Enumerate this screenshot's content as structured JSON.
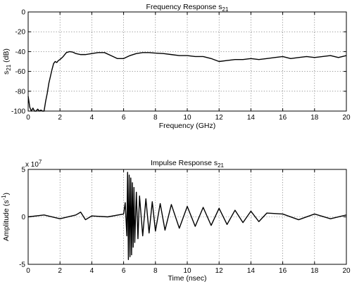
{
  "chart_data": [
    {
      "type": "line",
      "title": "Frequency Response s",
      "title_sub": "21",
      "xlabel": "Frequency (GHz)",
      "ylabel": "s",
      "ylabel_sub": "21",
      "ylabel_suffix": " (dB)",
      "xlim": [
        0,
        20
      ],
      "ylim": [
        -100,
        0
      ],
      "xticks": [
        0,
        2,
        4,
        6,
        8,
        10,
        12,
        14,
        16,
        18,
        20
      ],
      "yticks": [
        -100,
        -80,
        -60,
        -40,
        -20,
        0
      ],
      "grid": true,
      "series": [
        {
          "x": [
            0,
            0.1,
            0.2,
            0.3,
            0.4,
            0.5,
            0.6,
            0.7,
            0.8,
            0.9,
            1.0,
            1.1,
            1.2,
            1.3,
            1.4,
            1.5,
            1.6,
            1.7,
            1.8,
            1.9,
            2.0,
            2.2,
            2.4,
            2.6,
            2.8,
            3.0,
            3.3,
            3.6,
            4.0,
            4.4,
            4.8,
            5.2,
            5.6,
            6.0,
            6.4,
            6.8,
            7.2,
            7.6,
            8.0,
            8.5,
            9.0,
            9.5,
            10.0,
            10.5,
            11.0,
            11.5,
            12.0,
            12.5,
            13.0,
            13.5,
            14.0,
            14.5,
            15.0,
            15.5,
            16.0,
            16.5,
            17.0,
            17.5,
            18.0,
            18.5,
            19.0,
            19.5,
            20.0
          ],
          "y": [
            -85,
            -96,
            -100,
            -97,
            -100,
            -100,
            -98,
            -100,
            -99,
            -100,
            -100,
            -90,
            -82,
            -72,
            -65,
            -58,
            -52,
            -50,
            -51,
            -49,
            -48,
            -45,
            -41,
            -40,
            -40.5,
            -42,
            -43,
            -43,
            -42,
            -41,
            -41,
            -44,
            -47,
            -47,
            -44,
            -42,
            -41,
            -41,
            -41.5,
            -42,
            -43,
            -44,
            -44,
            -45,
            -45,
            -47,
            -50,
            -49,
            -48,
            -48,
            -47,
            -48,
            -47,
            -46,
            -45,
            -47,
            -46,
            -45,
            -46,
            -45,
            -44,
            -46,
            -44
          ]
        }
      ]
    },
    {
      "type": "line",
      "title": "Impulse Response s",
      "title_sub": "21",
      "xlabel": "Time (nsec)",
      "ylabel": "Amplitude (s",
      "ylabel_sup": "-1",
      "ylabel_suffix": ")",
      "y_multiplier": "x 10",
      "y_multiplier_exp": "7",
      "xlim": [
        0,
        20
      ],
      "ylim": [
        -5,
        5
      ],
      "xticks": [
        0,
        2,
        4,
        6,
        8,
        10,
        12,
        14,
        16,
        18,
        20
      ],
      "yticks": [
        -5,
        0,
        5
      ],
      "grid": true,
      "series": [
        {
          "x": [
            0,
            1.0,
            2.0,
            3.0,
            3.3,
            3.6,
            4.0,
            5.0,
            6.0,
            6.1,
            6.2,
            6.25,
            6.3,
            6.35,
            6.4,
            6.45,
            6.5,
            6.55,
            6.6,
            6.65,
            6.7,
            6.8,
            6.9,
            7.0,
            7.2,
            7.4,
            7.6,
            7.8,
            8.0,
            8.3,
            8.6,
            9.0,
            9.5,
            10.0,
            10.5,
            11.0,
            11.5,
            12.0,
            12.5,
            13.0,
            13.5,
            14.0,
            14.5,
            15.0,
            16.0,
            17.0,
            18.0,
            19.0,
            20.0
          ],
          "y": [
            0,
            0.2,
            -0.2,
            0.2,
            0.5,
            -0.3,
            0.1,
            0,
            0.3,
            1.5,
            -2,
            4.7,
            -4.5,
            4.4,
            -4.2,
            4.1,
            -4.0,
            3.6,
            -3.2,
            3.1,
            -2.7,
            2.6,
            -2.3,
            2.2,
            -2.0,
            1.9,
            -1.7,
            1.6,
            -1.5,
            1.4,
            -1.4,
            1.3,
            -1.2,
            1.1,
            -1.0,
            1.0,
            -0.9,
            0.9,
            -0.8,
            0.7,
            -0.6,
            0.6,
            -0.5,
            0.4,
            0.3,
            -0.3,
            0.3,
            -0.2,
            0.2
          ]
        }
      ]
    }
  ]
}
